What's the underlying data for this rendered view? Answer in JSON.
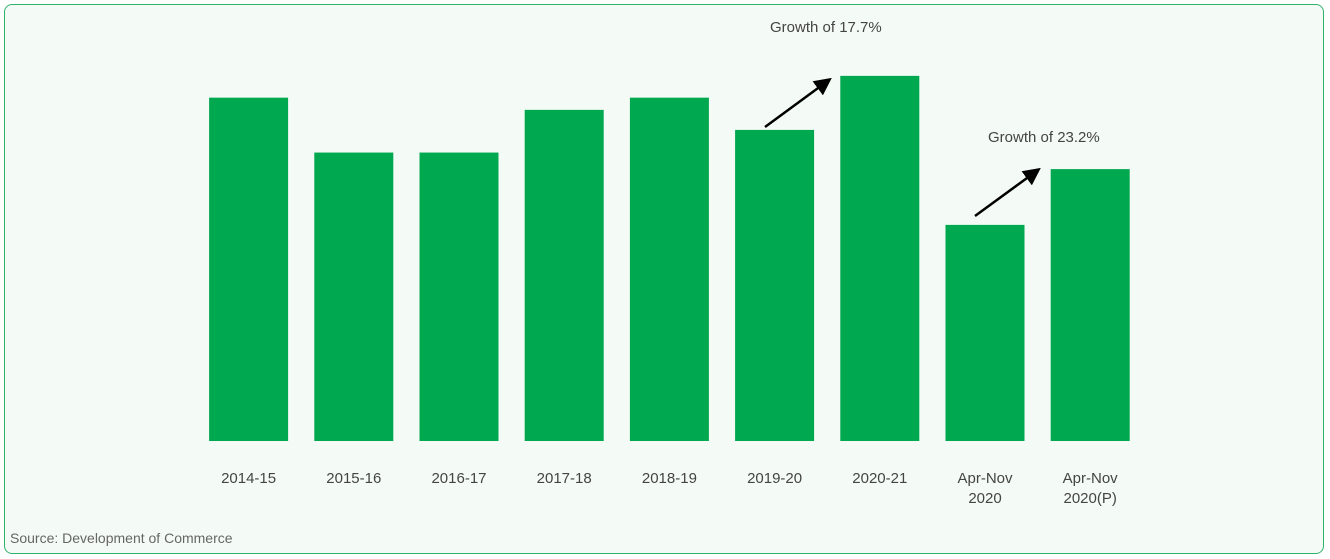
{
  "chart_data": {
    "type": "bar",
    "categories": [
      "2014-15",
      "2015-16",
      "2016-17",
      "2017-18",
      "2018-19",
      "2019-20",
      "2020-21",
      "Apr-Nov 2020",
      "Apr-Nov 2020(P)"
    ],
    "values": [
      39.4,
      33.1,
      33.1,
      38.0,
      39.4,
      35.7,
      41.9,
      24.8,
      31.2
    ],
    "color": "#00a84f",
    "ylim": [
      0,
      42
    ],
    "annotations": [
      "Growth of 17.7%",
      "Growth of 23.2%"
    ],
    "source": "Source: Development of Commerce"
  }
}
